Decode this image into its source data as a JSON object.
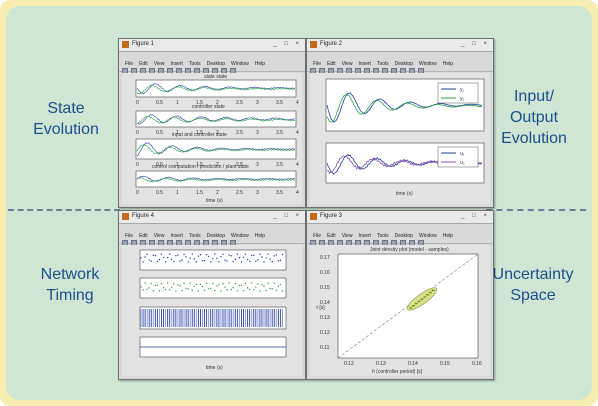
{
  "labels": {
    "state_evolution": [
      "State",
      "Evolution"
    ],
    "io_evolution": [
      "Input/",
      "Output",
      "Evolution"
    ],
    "network_timing": [
      "Network",
      "Timing"
    ],
    "uncertainty_space": [
      "Uncertainty",
      "Space"
    ]
  },
  "windows": [
    {
      "title": "Figure 1"
    },
    {
      "title": "Figure 2"
    },
    {
      "title": "Figure 4"
    },
    {
      "title": "Figure 3"
    }
  ],
  "menu": [
    "File",
    "Edit",
    "View",
    "Insert",
    "Tools",
    "Desktop",
    "Window",
    "Help"
  ],
  "window_controls": "_ □ ×",
  "figure1": {
    "subplot_titles": [
      "state state",
      "controller state",
      "input and controller state",
      "control computation / prediction / plant state"
    ],
    "xticks": [
      "0",
      "0.5",
      "1",
      "1.5",
      "2",
      "2.5",
      "3",
      "3.5",
      "4"
    ],
    "xlabel": "time (s)"
  },
  "figure2": {
    "legend_top": [
      "y₁",
      "y₂"
    ],
    "legend_bottom": [
      "u₁",
      "u₂"
    ],
    "xlabel": "time (s)"
  },
  "figure4": {
    "xlabel": "time (s)"
  },
  "figure3": {
    "title": "Joint density plot (model - samples)",
    "xticks": [
      "0.12",
      "0.13",
      "0.14",
      "0.15",
      "0.16"
    ],
    "yticks": [
      "0.17",
      "0.16",
      "0.15",
      "0.14",
      "0.13",
      "0.12",
      "0.11"
    ],
    "xlabel": "h (controller period) [s]",
    "ylabel": "τ [s]"
  }
}
